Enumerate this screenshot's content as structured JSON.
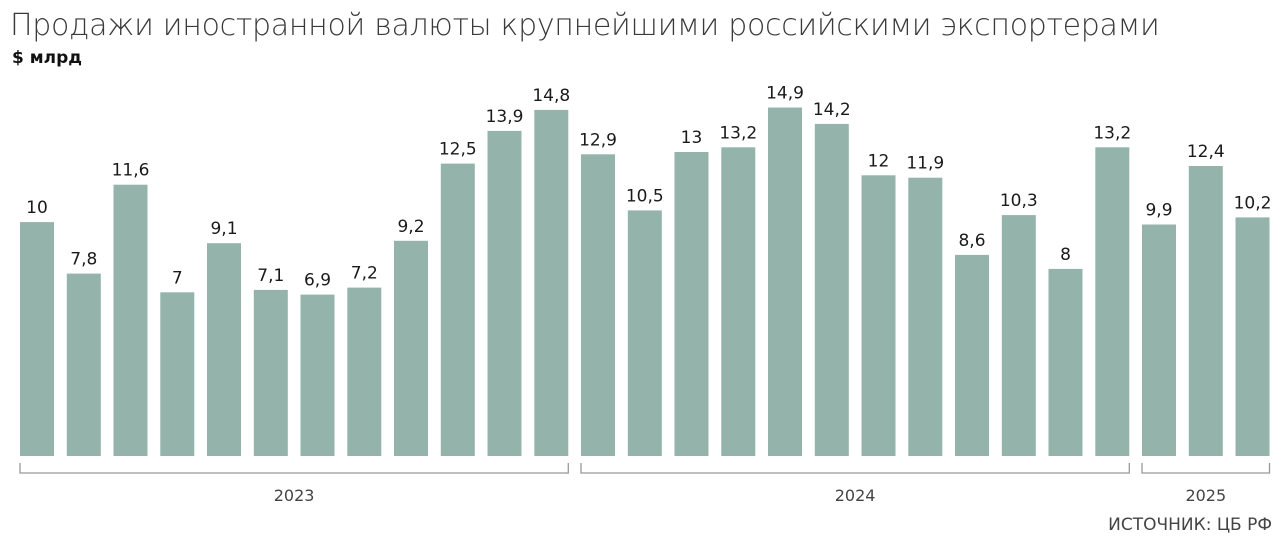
{
  "chart_data": {
    "type": "bar",
    "title": "Продажи иностранной валюты крупнейшими российскими экспортерами",
    "unit": "$ млрд",
    "source": "ИСТОЧНИК: ЦБ РФ",
    "values": [
      10,
      7.8,
      11.6,
      7,
      9.1,
      7.1,
      6.9,
      7.2,
      9.2,
      12.5,
      13.9,
      14.8,
      12.9,
      10.5,
      13,
      13.2,
      14.9,
      14.2,
      12,
      11.9,
      8.6,
      10.3,
      8,
      13.2,
      9.9,
      12.4,
      10.2
    ],
    "labels": [
      "10",
      "7,8",
      "11,6",
      "7",
      "9,1",
      "7,1",
      "6,9",
      "7,2",
      "9,2",
      "12,5",
      "13,9",
      "14,8",
      "12,9",
      "10,5",
      "13",
      "13,2",
      "14,9",
      "14,2",
      "12",
      "11,9",
      "8,6",
      "10,3",
      "8",
      "13,2",
      "9,9",
      "12,4",
      "10,2"
    ],
    "groups": [
      {
        "label": "2023",
        "count": 12
      },
      {
        "label": "2024",
        "count": 12
      },
      {
        "label": "2025",
        "count": 3
      }
    ],
    "ylim": [
      0,
      15
    ],
    "grid": false,
    "bar_color": "#93b3ab",
    "axis_color": "#999999"
  }
}
